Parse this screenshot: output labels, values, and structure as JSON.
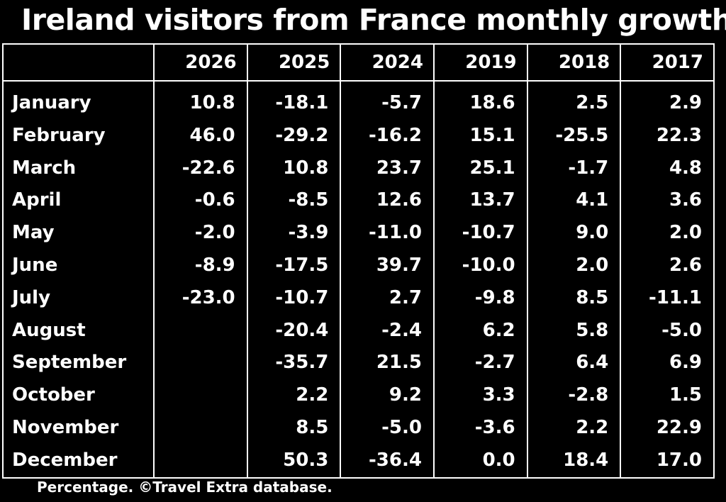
{
  "title": "Ireland visitors from France monthly growth",
  "footnote": "Percentage. ©Travel Extra database.",
  "chart_data": {
    "type": "table",
    "title": "Ireland visitors from France monthly growth",
    "columns": [
      "2026",
      "2025",
      "2024",
      "2019",
      "2018",
      "2017"
    ],
    "rows": [
      "January",
      "February",
      "March",
      "April",
      "May",
      "June",
      "July",
      "August",
      "September",
      "October",
      "November",
      "December"
    ],
    "values": {
      "2026": [
        "10.8",
        "46.0",
        "-22.6",
        "-0.6",
        "-2.0",
        "-8.9",
        "-23.0",
        "",
        "",
        "",
        "",
        ""
      ],
      "2025": [
        "-18.1",
        "-29.2",
        "10.8",
        "-8.5",
        "-3.9",
        "-17.5",
        "-10.7",
        "-20.4",
        "-35.7",
        "2.2",
        "8.5",
        "50.3"
      ],
      "2024": [
        "-5.7",
        "-16.2",
        "23.7",
        "12.6",
        "-11.0",
        "39.7",
        "2.7",
        "-2.4",
        "21.5",
        "9.2",
        "-5.0",
        "-36.4"
      ],
      "2019": [
        "18.6",
        "15.1",
        "25.1",
        "13.7",
        "-10.7",
        "-10.0",
        "-9.8",
        "6.2",
        "-2.7",
        "3.3",
        "-3.6",
        "0.0"
      ],
      "2018": [
        "2.5",
        "-25.5",
        "-1.7",
        "4.1",
        "9.0",
        "2.0",
        "8.5",
        "5.8",
        "6.4",
        "-2.8",
        "2.2",
        "18.4"
      ],
      "2017": [
        "2.9",
        "22.3",
        "4.8",
        "3.6",
        "2.0",
        "2.6",
        "-11.1",
        "-5.0",
        "6.9",
        "1.5",
        "22.9",
        "17.0"
      ]
    }
  }
}
